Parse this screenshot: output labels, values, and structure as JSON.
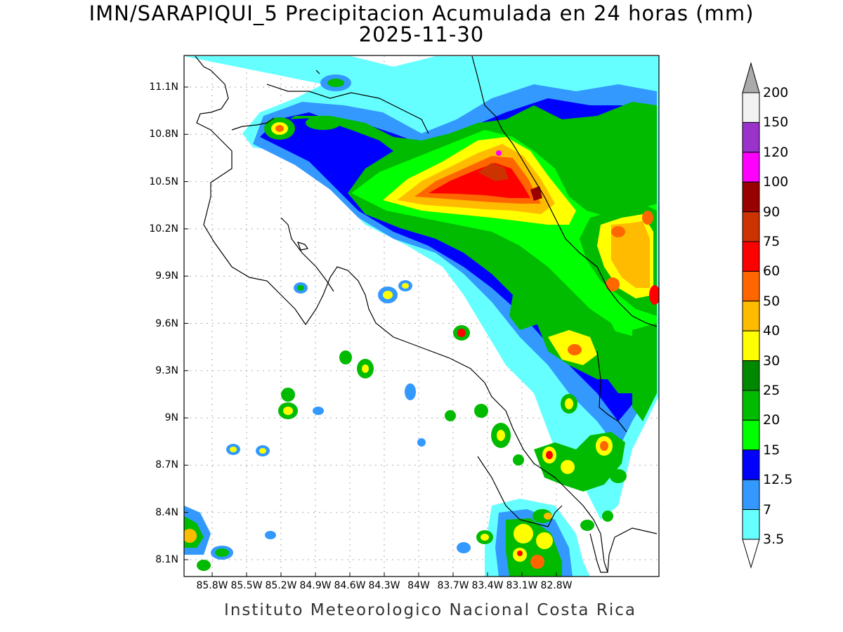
{
  "title": "IMN/SARAPIQUI_5 Precipitacion Acumulada en 24 horas (mm)",
  "date": "2025-11-30",
  "footer": "Instituto Meteorologico Nacional Costa Rica",
  "lat_ticks": [
    "11.1N",
    "10.8N",
    "10.5N",
    "10.2N",
    "9.9N",
    "9.6N",
    "9.3N",
    "9N",
    "8.7N",
    "8.4N",
    "8.1N"
  ],
  "lon_ticks": [
    "85.8W",
    "85.5W",
    "85.2W",
    "84.9W",
    "84.6W",
    "84.3W",
    "84W",
    "83.7W",
    "83.4W",
    "83.1W",
    "82.8W"
  ],
  "colorbar": {
    "labels": [
      "200",
      "150",
      "120",
      "100",
      "90",
      "75",
      "60",
      "50",
      "40",
      "30",
      "25",
      "20",
      "15",
      "12.5",
      "7",
      "3.5"
    ],
    "colors": [
      "#f2f2f2",
      "#9933cc",
      "#ff00ff",
      "#990000",
      "#cc3300",
      "#ff0000",
      "#ff6600",
      "#ffbb00",
      "#ffff00",
      "#008800",
      "#00bb00",
      "#00ff00",
      "#0000ff",
      "#3399ff",
      "#66ffff"
    ]
  }
}
